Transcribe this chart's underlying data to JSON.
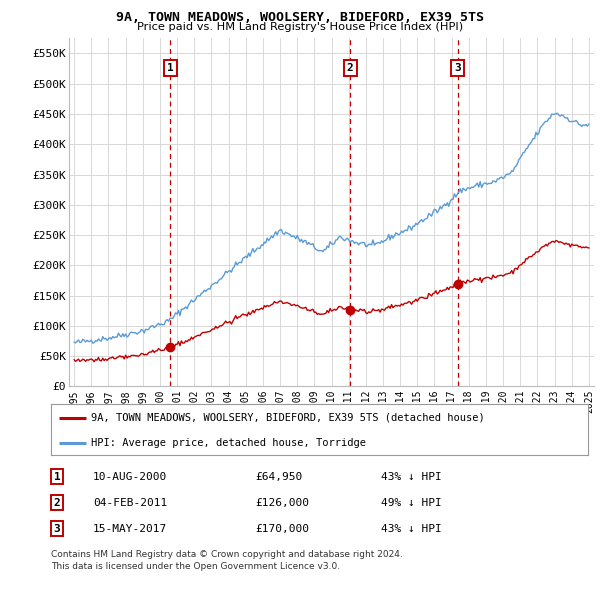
{
  "title": "9A, TOWN MEADOWS, WOOLSERY, BIDEFORD, EX39 5TS",
  "subtitle": "Price paid vs. HM Land Registry's House Price Index (HPI)",
  "ylim": [
    0,
    575000
  ],
  "yticks": [
    0,
    50000,
    100000,
    150000,
    200000,
    250000,
    300000,
    350000,
    400000,
    450000,
    500000,
    550000
  ],
  "ytick_labels": [
    "£0",
    "£50K",
    "£100K",
    "£150K",
    "£200K",
    "£250K",
    "£300K",
    "£350K",
    "£400K",
    "£450K",
    "£500K",
    "£550K"
  ],
  "x_start_year": 1995,
  "x_end_year": 2025,
  "xtick_years": [
    1995,
    1996,
    1997,
    1998,
    1999,
    2000,
    2001,
    2002,
    2003,
    2004,
    2005,
    2006,
    2007,
    2008,
    2009,
    2010,
    2011,
    2012,
    2013,
    2014,
    2015,
    2016,
    2017,
    2018,
    2019,
    2020,
    2021,
    2022,
    2023,
    2024,
    2025
  ],
  "sale_dates": [
    2000.61,
    2011.09,
    2017.37
  ],
  "sale_prices": [
    64950,
    126000,
    170000
  ],
  "sale_labels": [
    "1",
    "2",
    "3"
  ],
  "hpi_color": "#5b9bd5",
  "price_color": "#c00000",
  "vline_color": "#c00000",
  "bg_color": "#ffffff",
  "grid_color": "#d8d8d8",
  "legend_label_red": "9A, TOWN MEADOWS, WOOLSERY, BIDEFORD, EX39 5TS (detached house)",
  "legend_label_blue": "HPI: Average price, detached house, Torridge",
  "table_rows": [
    [
      "1",
      "10-AUG-2000",
      "£64,950",
      "43% ↓ HPI"
    ],
    [
      "2",
      "04-FEB-2011",
      "£126,000",
      "49% ↓ HPI"
    ],
    [
      "3",
      "15-MAY-2017",
      "£170,000",
      "43% ↓ HPI"
    ]
  ],
  "footnote1": "Contains HM Land Registry data © Crown copyright and database right 2024.",
  "footnote2": "This data is licensed under the Open Government Licence v3.0.",
  "hpi_anchors_x": [
    1995.0,
    1997.0,
    1999.0,
    2000.5,
    2002.0,
    2003.5,
    2005.0,
    2007.0,
    2008.5,
    2009.5,
    2010.5,
    2011.5,
    2012.5,
    2013.5,
    2014.5,
    2015.5,
    2016.5,
    2017.5,
    2018.5,
    2019.5,
    2020.5,
    2021.5,
    2022.5,
    2023.0,
    2023.5,
    2024.5
  ],
  "hpi_anchors_y": [
    72000,
    80000,
    92000,
    108000,
    143000,
    178000,
    213000,
    258000,
    238000,
    222000,
    247000,
    237000,
    232000,
    248000,
    260000,
    278000,
    297000,
    323000,
    332000,
    338000,
    353000,
    398000,
    438000,
    452000,
    447000,
    432000
  ]
}
